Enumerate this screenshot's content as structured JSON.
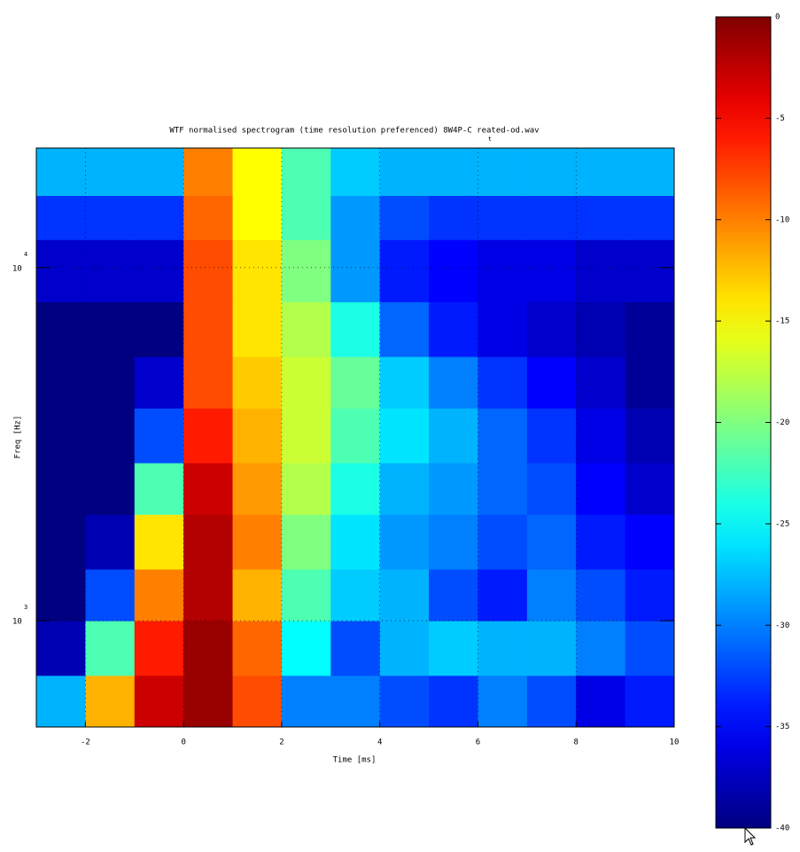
{
  "chart_data": {
    "type": "spectrogram",
    "title": "WTF normalised spectrogram (time resolution preferenced)  8W4P-C reated-od.wav",
    "subtitle": "t",
    "x_label": "Time [ms]",
    "y_label": "Freq [Hz]",
    "xlim": [
      -3,
      10
    ],
    "xticks": [
      -2,
      0,
      2,
      4,
      6,
      8,
      10
    ],
    "ylim": [
      500,
      21800
    ],
    "y_log": true,
    "yticks": [
      {
        "value": 1000,
        "label": "10",
        "exponent": "3"
      },
      {
        "value": 10000,
        "label": "10",
        "exponent": "4"
      }
    ],
    "grid": true,
    "xbins": [
      -3,
      -2,
      -1,
      0,
      1,
      2,
      3,
      4,
      5,
      6,
      7,
      8,
      9,
      10
    ],
    "ybins": [
      500,
      700,
      1000,
      1400,
      2000,
      2800,
      4000,
      5600,
      8000,
      12000,
      16000,
      21800
    ],
    "z": [
      [
        -28,
        -12,
        -3,
        -1,
        -8,
        -30,
        -30,
        -32,
        -33,
        -30,
        -32,
        -36,
        -34
      ],
      [
        -38,
        -22,
        -6,
        -1,
        -9,
        -25,
        -32,
        -28,
        -27,
        -28,
        -28,
        -30,
        -32
      ],
      [
        -40,
        -32,
        -10,
        -2,
        -12,
        -22,
        -27,
        -28,
        -32,
        -34,
        -30,
        -32,
        -34
      ],
      [
        -40,
        -38,
        -14,
        -2,
        -10,
        -20,
        -26,
        -29,
        -30,
        -32,
        -31,
        -34,
        -35
      ],
      [
        -40,
        -40,
        -22,
        -3,
        -11,
        -18,
        -24,
        -28,
        -29,
        -31,
        -32,
        -35,
        -37
      ],
      [
        -40,
        -40,
        -32,
        -6,
        -12,
        -17,
        -22,
        -26,
        -28,
        -31,
        -33,
        -36,
        -38
      ],
      [
        -40,
        -40,
        -37,
        -8,
        -13,
        -17,
        -21,
        -27,
        -30,
        -33,
        -35,
        -37,
        -39
      ],
      [
        -40,
        -40,
        -40,
        -8,
        -14,
        -18,
        -24,
        -31,
        -34,
        -36,
        -37,
        -38,
        -39
      ],
      [
        -37,
        -37,
        -37,
        -8,
        -14,
        -20,
        -29,
        -34,
        -35,
        -36,
        -36,
        -37,
        -37
      ],
      [
        -33,
        -33,
        -33,
        -9,
        -15,
        -22,
        -29,
        -32,
        -33,
        -33,
        -33,
        -33,
        -33
      ],
      [
        -28,
        -28,
        -28,
        -10,
        -15,
        -22,
        -27,
        -28,
        -28,
        -28,
        -28,
        -28,
        -28
      ]
    ],
    "colormap": "jet",
    "zlim": [
      -40,
      0
    ],
    "colorbar_ticks": [
      0,
      -5,
      -10,
      -15,
      -20,
      -25,
      -30,
      -35,
      -40
    ]
  }
}
